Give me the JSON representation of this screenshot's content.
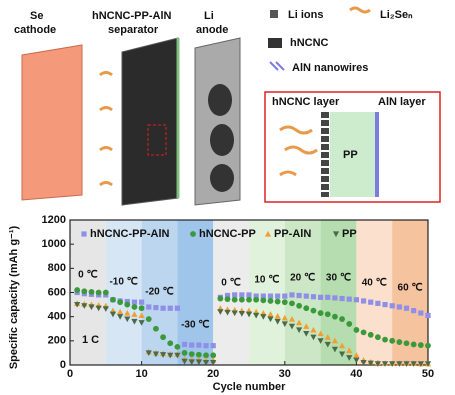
{
  "diagram": {
    "cathode": [
      "Se",
      "cathode"
    ],
    "separator": [
      "hNCNC-PP-AlN",
      "separator"
    ],
    "anode": [
      "Li",
      "anode"
    ],
    "legend": [
      "Li ions",
      "Li₂Seₙ",
      "hNCNC",
      "AlN nanowires"
    ],
    "inset": {
      "left": "hNCNC layer",
      "right": "AlN layer",
      "middle": "PP"
    }
  },
  "chart_data": {
    "type": "scatter",
    "xlabel": "Cycle number",
    "ylabel": "Specific capacity (mAh g⁻¹)",
    "rate_label": "1 C",
    "xlim": [
      0,
      50
    ],
    "xticks": [
      0,
      10,
      20,
      30,
      40,
      50
    ],
    "ylim": [
      0,
      1200
    ],
    "yticks": [
      0,
      200,
      400,
      600,
      800,
      1000,
      1200
    ],
    "regions": [
      {
        "label": "0 ℃",
        "start": 0,
        "end": 5,
        "color": "#e6e6e6"
      },
      {
        "label": "-10 ℃",
        "start": 5,
        "end": 10,
        "color": "#d6e6f5"
      },
      {
        "label": "-20 ℃",
        "start": 10,
        "end": 15,
        "color": "#bcd6ef"
      },
      {
        "label": "-30 ℃",
        "start": 15,
        "end": 20,
        "color": "#9fc5ea"
      },
      {
        "label": "0 ℃",
        "start": 20,
        "end": 25,
        "color": "#ececec"
      },
      {
        "label": "10 ℃",
        "start": 25,
        "end": 30,
        "color": "#e0f1dc"
      },
      {
        "label": "20 ℃",
        "start": 30,
        "end": 35,
        "color": "#cbe7c5"
      },
      {
        "label": "30 ℃",
        "start": 35,
        "end": 40,
        "color": "#b6ddaf"
      },
      {
        "label": "40 ℃",
        "start": 40,
        "end": 45,
        "color": "#fbe1cd"
      },
      {
        "label": "60 ℃",
        "start": 45,
        "end": 50,
        "color": "#f6c39f"
      }
    ],
    "x": [
      1,
      2,
      3,
      4,
      5,
      6,
      7,
      8,
      9,
      10,
      11,
      12,
      13,
      14,
      15,
      16,
      17,
      18,
      19,
      20,
      21,
      22,
      23,
      24,
      25,
      26,
      27,
      28,
      29,
      30,
      31,
      32,
      33,
      34,
      35,
      36,
      37,
      38,
      39,
      40,
      41,
      42,
      43,
      44,
      45,
      46,
      47,
      48,
      49,
      50
    ],
    "series": [
      {
        "name": "hNCNC-PP-AlN",
        "color": "#8f8fe8",
        "marker": "square",
        "values": [
          600,
          590,
          585,
          580,
          580,
          540,
          530,
          525,
          520,
          520,
          480,
          475,
          470,
          470,
          470,
          170,
          165,
          165,
          160,
          160,
          560,
          575,
          580,
          580,
          580,
          570,
          570,
          570,
          570,
          570,
          580,
          575,
          570,
          565,
          560,
          560,
          555,
          550,
          545,
          540,
          530,
          520,
          510,
          500,
          490,
          480,
          470,
          450,
          430,
          410
        ]
      },
      {
        "name": "hNCNC-PP",
        "color": "#3a9a3a",
        "marker": "circle",
        "values": [
          620,
          610,
          605,
          600,
          600,
          540,
          520,
          500,
          480,
          470,
          380,
          300,
          230,
          180,
          150,
          100,
          90,
          85,
          80,
          80,
          550,
          545,
          540,
          540,
          540,
          540,
          535,
          530,
          525,
          520,
          510,
          490,
          470,
          450,
          430,
          420,
          400,
          380,
          340,
          290,
          270,
          250,
          230,
          210,
          200,
          190,
          180,
          170,
          165,
          160
        ]
      },
      {
        "name": "PP-AlN",
        "color": "#f0a030",
        "marker": "triangle",
        "values": [
          510,
          505,
          500,
          495,
          490,
          450,
          440,
          430,
          420,
          410,
          110,
          100,
          95,
          90,
          90,
          50,
          45,
          45,
          40,
          40,
          470,
          460,
          455,
          450,
          450,
          440,
          430,
          420,
          405,
          390,
          380,
          350,
          320,
          290,
          260,
          230,
          200,
          160,
          120,
          80,
          40,
          25,
          20,
          15,
          15,
          15,
          15,
          15,
          10,
          10
        ]
      },
      {
        "name": "PP",
        "color": "#4a6a4a",
        "marker": "triangle-down",
        "values": [
          500,
          490,
          480,
          470,
          465,
          420,
          400,
          380,
          360,
          350,
          100,
          90,
          85,
          80,
          80,
          30,
          25,
          25,
          20,
          20,
          440,
          435,
          430,
          425,
          420,
          410,
          400,
          380,
          360,
          340,
          320,
          290,
          260,
          230,
          200,
          170,
          130,
          90,
          60,
          40,
          20,
          15,
          10,
          10,
          10,
          10,
          10,
          10,
          10,
          10
        ]
      }
    ]
  }
}
